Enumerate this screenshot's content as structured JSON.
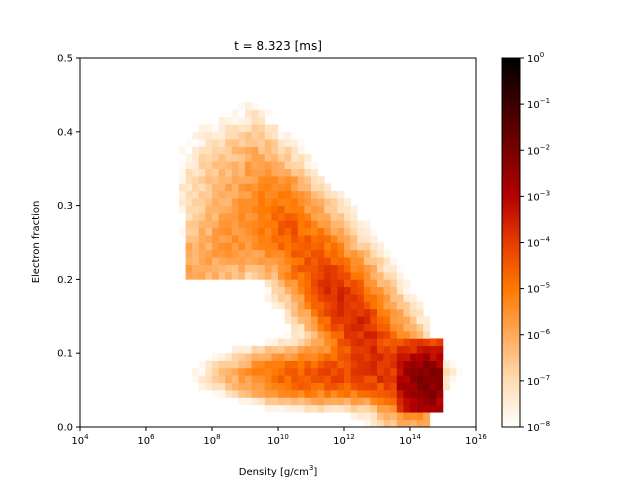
{
  "chart_data": {
    "type": "heatmap",
    "title": "t = 8.323 [ms]",
    "xlabel": "Density [g/cm3]",
    "xlabel_parts": {
      "prefix": "Density [g/cm",
      "sup": "3",
      "suffix": "]"
    },
    "ylabel": "Electron fraction",
    "x_scale": "log",
    "xlim": [
      10000,
      10000000000000000
    ],
    "x_ticks": [
      {
        "base": "10",
        "exp": "4"
      },
      {
        "base": "10",
        "exp": "6"
      },
      {
        "base": "10",
        "exp": "8"
      },
      {
        "base": "10",
        "exp": "10"
      },
      {
        "base": "10",
        "exp": "12"
      },
      {
        "base": "10",
        "exp": "14"
      },
      {
        "base": "10",
        "exp": "16"
      }
    ],
    "ylim": [
      0.0,
      0.5
    ],
    "y_ticks": [
      "0.0",
      "0.1",
      "0.2",
      "0.3",
      "0.4",
      "0.5"
    ],
    "colorbar": {
      "scale": "log",
      "range": [
        1e-08,
        1
      ],
      "ticks": [
        {
          "base": "10",
          "exp": "0"
        },
        {
          "base": "10",
          "exp": "−1"
        },
        {
          "base": "10",
          "exp": "−2"
        },
        {
          "base": "10",
          "exp": "−3"
        },
        {
          "base": "10",
          "exp": "−4"
        },
        {
          "base": "10",
          "exp": "−5"
        },
        {
          "base": "10",
          "exp": "−6"
        },
        {
          "base": "10",
          "exp": "−7"
        },
        {
          "base": "10",
          "exp": "−8"
        }
      ],
      "colormap": "gist_heat_r",
      "colors": [
        "#ffffff",
        "#ffdcb4",
        "#ffaa5a",
        "#ff7800",
        "#e63c00",
        "#b40000",
        "#780000",
        "#3c0000",
        "#000000"
      ]
    },
    "approx_distribution": {
      "description_note": "",
      "low_density_arm": {
        "log_rho": [
          7.2,
          10.5
        ],
        "ye": [
          0.2,
          0.34
        ]
      },
      "ridge": {
        "log_rho_start": 9.3,
        "ye_start": 0.32,
        "log_rho_end": 14.3,
        "ye_end": 0.06
      },
      "dense_core": {
        "log_rho": [
          13.6,
          15.0
        ],
        "ye": [
          0.02,
          0.12
        ]
      },
      "log_weight_range": [
        -8,
        0
      ]
    }
  }
}
